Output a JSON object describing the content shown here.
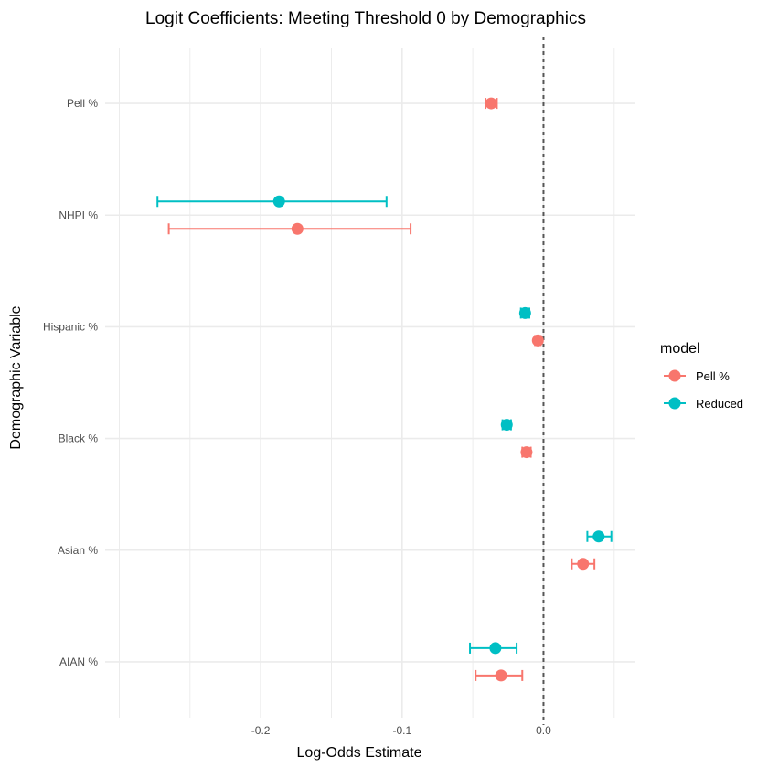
{
  "chart_data": {
    "type": "scatter",
    "title": "Logit Coefficients: Meeting Threshold 0 by Demographics",
    "xlabel": "Log-Odds Estimate",
    "ylabel": "Demographic Variable",
    "x_ticks": [
      -0.2,
      -0.1,
      0.0
    ],
    "x_tick_labels": [
      "-0.2",
      "-0.1",
      "0.0"
    ],
    "xlim": [
      -0.31,
      0.065
    ],
    "categories": [
      "Pell %",
      "NHPI %",
      "Hispanic %",
      "Black %",
      "Asian %",
      "AIAN %"
    ],
    "reference_line": 0,
    "grid": true,
    "legend": {
      "title": "model",
      "position": "right"
    },
    "series": [
      {
        "name": "Pell %",
        "color": "#F8766D",
        "points": [
          {
            "category": "Pell %",
            "estimate": -0.037,
            "ci_low": -0.041,
            "ci_high": -0.033
          },
          {
            "category": "NHPI %",
            "estimate": -0.174,
            "ci_low": -0.265,
            "ci_high": -0.094
          },
          {
            "category": "Hispanic %",
            "estimate": -0.004,
            "ci_low": -0.006,
            "ci_high": -0.002
          },
          {
            "category": "Black %",
            "estimate": -0.012,
            "ci_low": -0.015,
            "ci_high": -0.009
          },
          {
            "category": "Asian %",
            "estimate": 0.028,
            "ci_low": 0.02,
            "ci_high": 0.036
          },
          {
            "category": "AIAN %",
            "estimate": -0.03,
            "ci_low": -0.048,
            "ci_high": -0.015
          }
        ]
      },
      {
        "name": "Reduced",
        "color": "#00BFC4",
        "points": [
          {
            "category": "NHPI %",
            "estimate": -0.187,
            "ci_low": -0.273,
            "ci_high": -0.111
          },
          {
            "category": "Hispanic %",
            "estimate": -0.013,
            "ci_low": -0.016,
            "ci_high": -0.01
          },
          {
            "category": "Black %",
            "estimate": -0.026,
            "ci_low": -0.029,
            "ci_high": -0.023
          },
          {
            "category": "Asian %",
            "estimate": 0.039,
            "ci_low": 0.031,
            "ci_high": 0.048
          },
          {
            "category": "AIAN %",
            "estimate": -0.034,
            "ci_low": -0.052,
            "ci_high": -0.019
          }
        ]
      }
    ]
  }
}
